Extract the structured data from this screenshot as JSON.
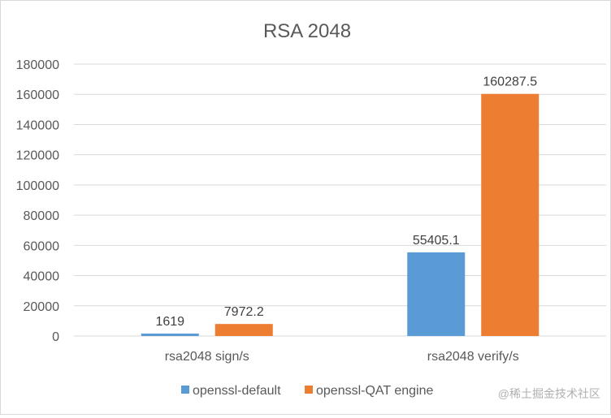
{
  "chart_data": {
    "type": "bar",
    "title": "RSA 2048",
    "xlabel": "",
    "ylabel": "",
    "categories": [
      "rsa2048 sign/s",
      "rsa2048 verify/s"
    ],
    "series": [
      {
        "name": "openssl-default",
        "values": [
          1619,
          55405.1
        ],
        "labels": [
          "1619",
          "55405.1"
        ],
        "color": "#5b9bd5"
      },
      {
        "name": "openssl-QAT engine",
        "values": [
          7972.2,
          160287.5
        ],
        "labels": [
          "7972.2",
          "160287.5"
        ],
        "color": "#ed7d31"
      }
    ],
    "ylim": [
      0,
      180000
    ],
    "yticks": [
      0,
      20000,
      40000,
      60000,
      80000,
      100000,
      120000,
      140000,
      160000,
      180000
    ],
    "grid": true,
    "legend_position": "bottom"
  },
  "watermark": "@稀土掘金技术社区"
}
